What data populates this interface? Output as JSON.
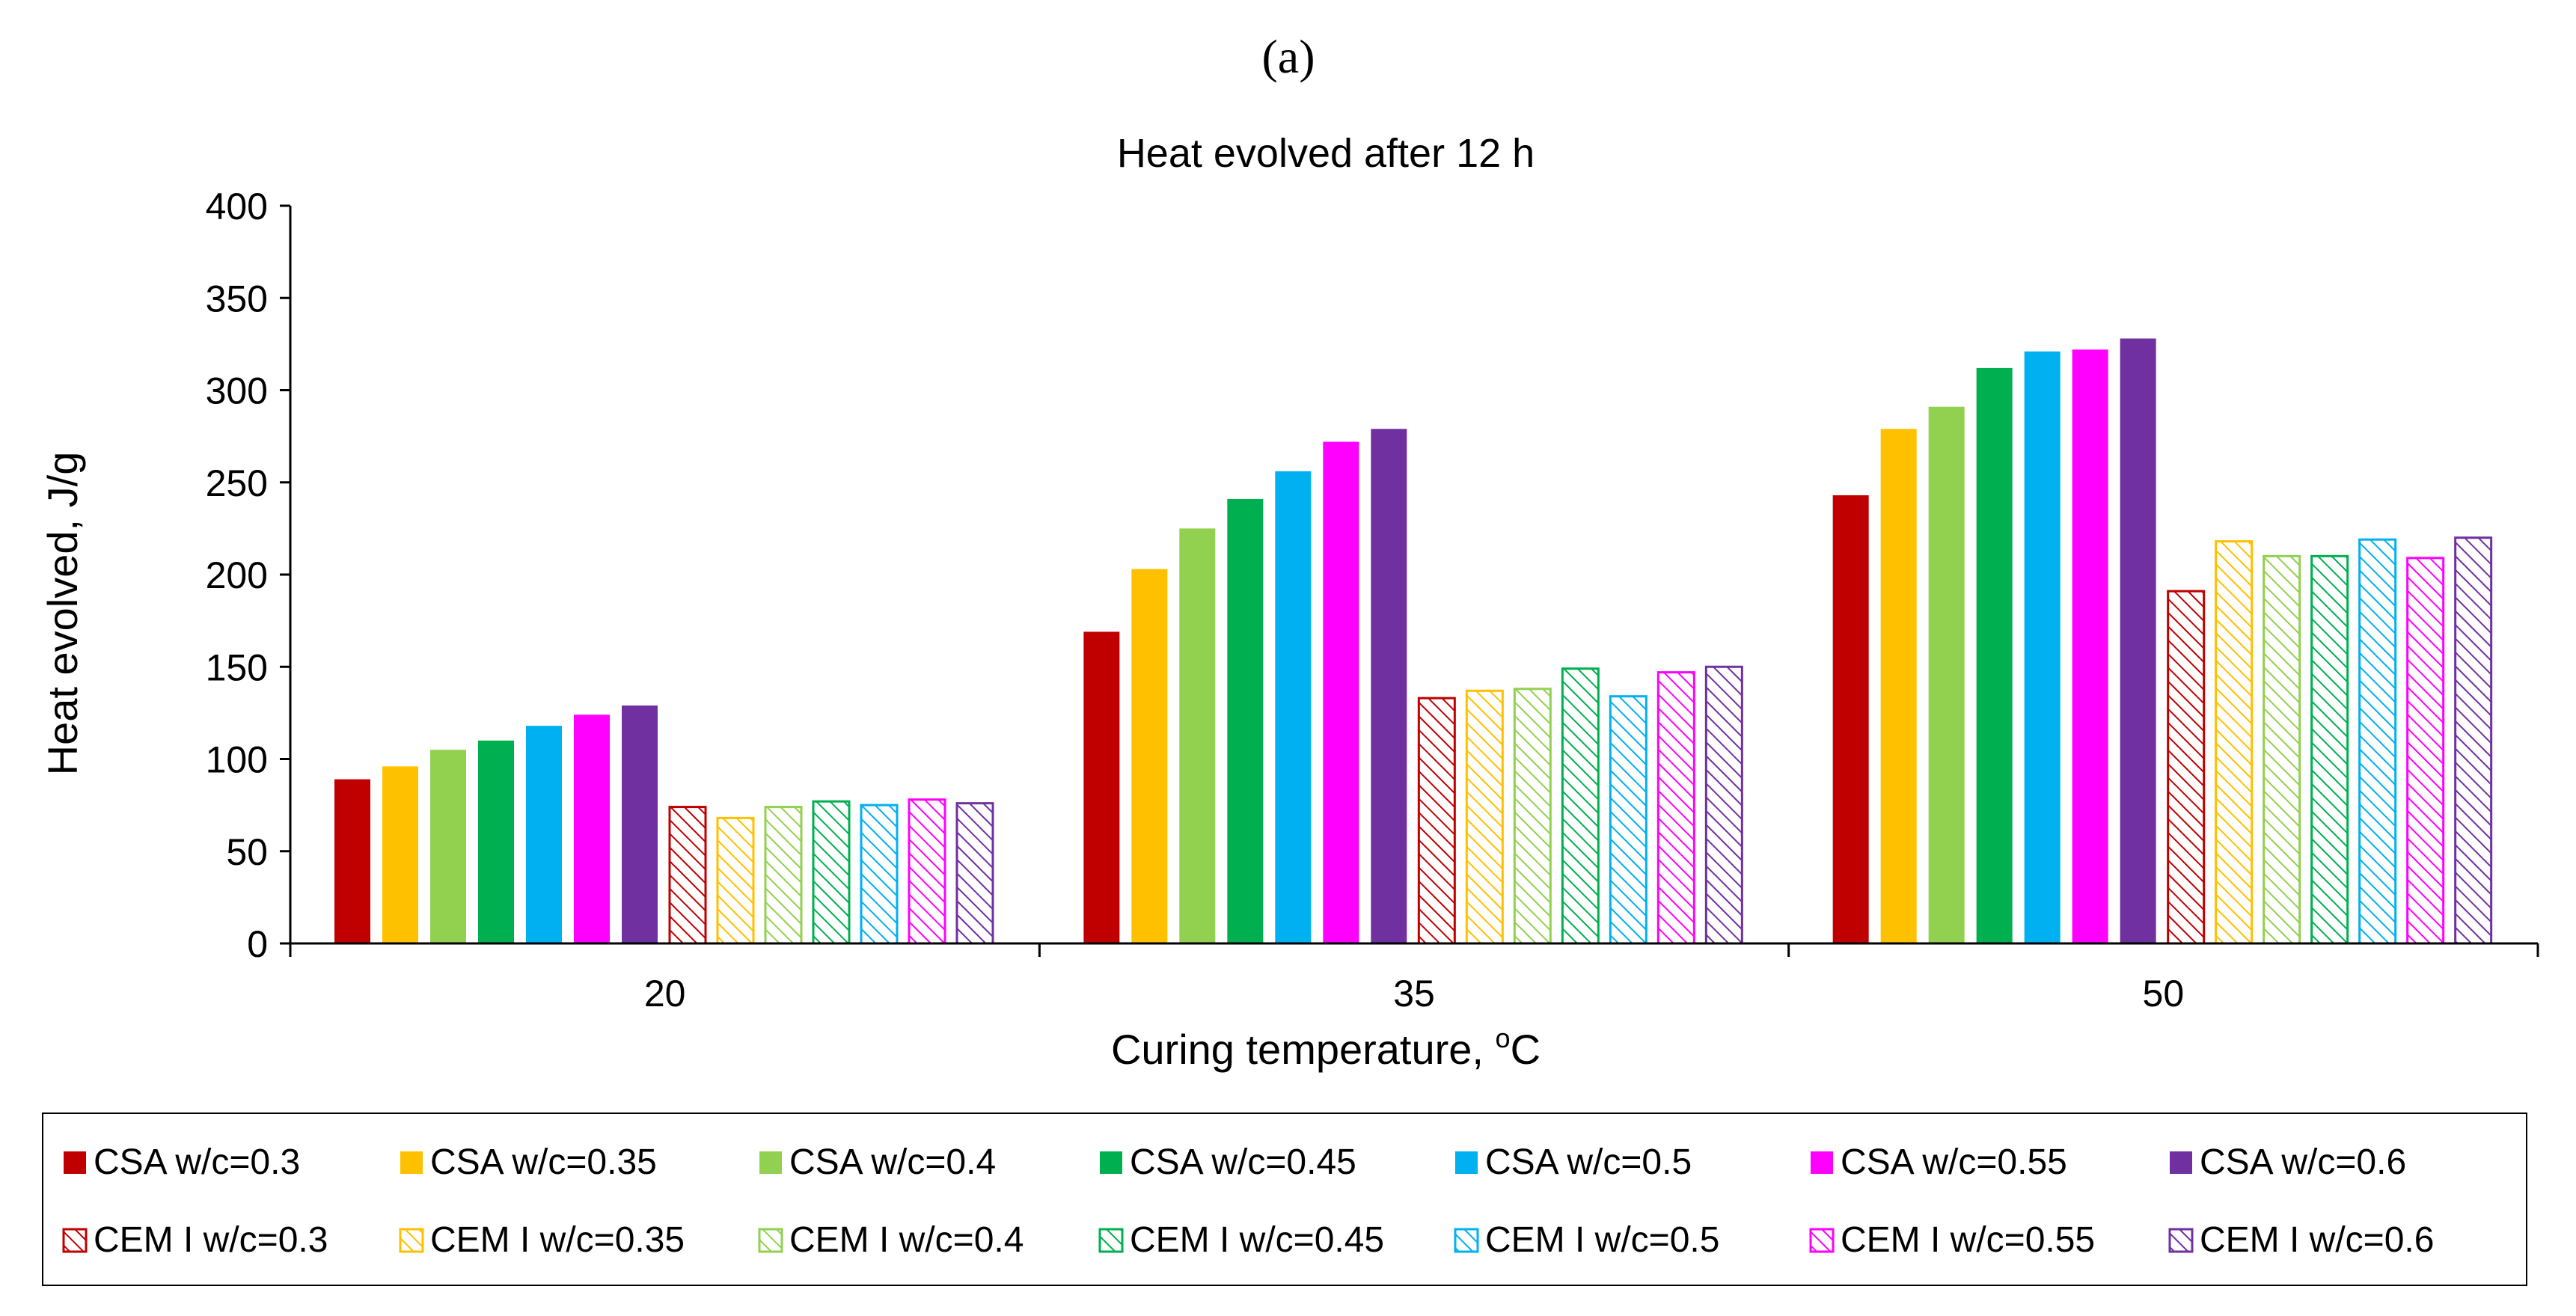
{
  "panel_label": "(a)",
  "chart_data": {
    "type": "bar",
    "title": "Heat evolved after 12 h",
    "ylabel": "Heat evolved, J/g",
    "xlabel_main": "Curing temperature, ",
    "xlabel_sup": "o",
    "xlabel_end": "C",
    "categories": [
      "20",
      "35",
      "50"
    ],
    "ylim": [
      0,
      400
    ],
    "yticks": [
      0,
      50,
      100,
      150,
      200,
      250,
      300,
      350,
      400
    ],
    "grid": false,
    "legend_position": "bottom",
    "series": [
      {
        "name": "CSA w/c=0.3",
        "color": "#C00000",
        "pattern": "solid",
        "values": [
          89,
          169,
          243
        ]
      },
      {
        "name": "CSA w/c=0.35",
        "color": "#FFC000",
        "pattern": "solid",
        "values": [
          96,
          203,
          279
        ]
      },
      {
        "name": "CSA w/c=0.4",
        "color": "#92D050",
        "pattern": "solid",
        "values": [
          105,
          225,
          291
        ]
      },
      {
        "name": "CSA w/c=0.45",
        "color": "#00B050",
        "pattern": "solid",
        "values": [
          110,
          241,
          312
        ]
      },
      {
        "name": "CSA w/c=0.5",
        "color": "#00B0F0",
        "pattern": "solid",
        "values": [
          118,
          256,
          321
        ]
      },
      {
        "name": "CSA w/c=0.55",
        "color": "#FF00FF",
        "pattern": "solid",
        "values": [
          124,
          272,
          322
        ]
      },
      {
        "name": "CSA w/c=0.6",
        "color": "#7030A0",
        "pattern": "solid",
        "values": [
          129,
          279,
          328
        ]
      },
      {
        "name": "CEM I w/c=0.3",
        "color": "#C00000",
        "pattern": "hatch",
        "values": [
          74,
          133,
          191
        ]
      },
      {
        "name": "CEM I w/c=0.35",
        "color": "#FFC000",
        "pattern": "hatch",
        "values": [
          68,
          137,
          218
        ]
      },
      {
        "name": "CEM I w/c=0.4",
        "color": "#92D050",
        "pattern": "hatch",
        "values": [
          74,
          138,
          210
        ]
      },
      {
        "name": "CEM I w/c=0.45",
        "color": "#00B050",
        "pattern": "hatch",
        "values": [
          77,
          149,
          210
        ]
      },
      {
        "name": "CEM I w/c=0.5",
        "color": "#00B0F0",
        "pattern": "hatch",
        "values": [
          75,
          134,
          219
        ]
      },
      {
        "name": "CEM I w/c=0.55",
        "color": "#FF00FF",
        "pattern": "hatch",
        "values": [
          78,
          147,
          209
        ]
      },
      {
        "name": "CEM I w/c=0.6",
        "color": "#7030A0",
        "pattern": "hatch",
        "values": [
          76,
          150,
          220
        ]
      }
    ]
  }
}
